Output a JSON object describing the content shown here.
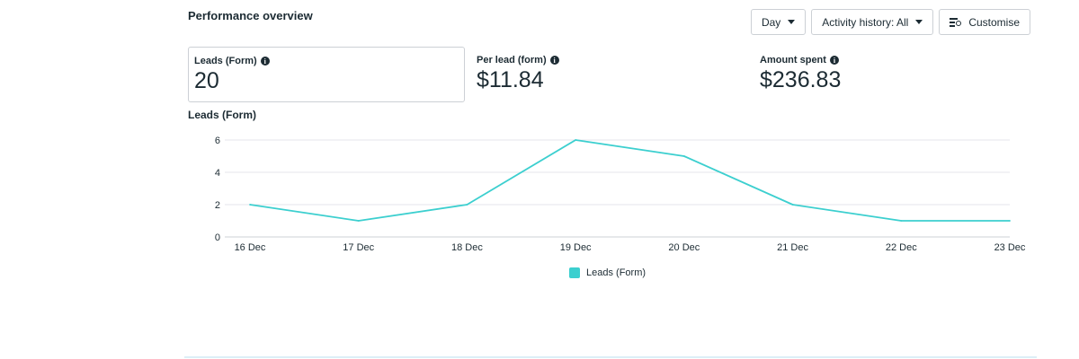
{
  "section": {
    "title": "Performance overview"
  },
  "toolbar": {
    "day_label": "Day",
    "activity_label": "Activity history: All",
    "customise_label": "Customise"
  },
  "metrics": [
    {
      "label": "Leads (Form)",
      "value": "20",
      "selected": true
    },
    {
      "label": "Per lead (form)",
      "value": "$11.84"
    },
    {
      "label": "Amount spent",
      "value": "$236.83"
    }
  ],
  "chart_title": "Leads (Form)",
  "colors": {
    "series": "#3ccfcf",
    "grid": "#e4e6eb",
    "border": "#ccd0d5"
  },
  "chart_data": {
    "type": "line",
    "title": "Leads (Form)",
    "x": [
      "16 Dec",
      "17 Dec",
      "18 Dec",
      "19 Dec",
      "20 Dec",
      "21 Dec",
      "22 Dec",
      "23 Dec"
    ],
    "series": [
      {
        "name": "Leads (Form)",
        "values": [
          2,
          1,
          2,
          6,
          5,
          2,
          1,
          1
        ]
      }
    ],
    "yticks": [
      0,
      2,
      4,
      6
    ],
    "ylim": [
      0,
      6
    ],
    "grid": true,
    "legend": "bottom-center"
  },
  "legend": {
    "label": "Leads (Form)"
  }
}
